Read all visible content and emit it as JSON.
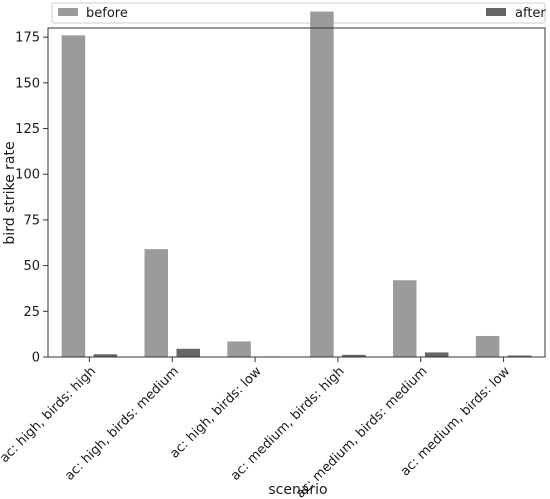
{
  "chart_data": {
    "type": "bar",
    "xlabel": "scenario",
    "ylabel": "bird strike rate",
    "ylim": [
      0,
      180
    ],
    "yticks": [
      0,
      25,
      50,
      75,
      100,
      125,
      150,
      175
    ],
    "categories": [
      "ac: high, birds: high",
      "ac: high, birds: medium",
      "ac: high, birds: low",
      "ac: medium, birds: high",
      "ac: medium, birds: medium",
      "ac: medium, birds: low"
    ],
    "series": [
      {
        "name": "before",
        "color": "#9b9b9b",
        "values": [
          176,
          59,
          8.5,
          189,
          42,
          11.5
        ]
      },
      {
        "name": "after",
        "color": "#666666",
        "values": [
          1.5,
          4.5,
          0.3,
          1.2,
          2.5,
          0.8
        ]
      }
    ],
    "legend": "top",
    "grid": false
  }
}
